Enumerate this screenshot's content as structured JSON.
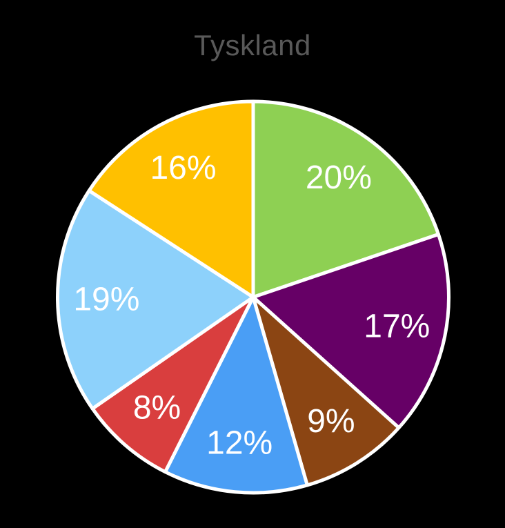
{
  "chart_data": {
    "type": "pie",
    "title": "Tyskland",
    "values": [
      20,
      17,
      9,
      12,
      8,
      19,
      16
    ],
    "labels": [
      "20%",
      "17%",
      "9%",
      "12%",
      "8%",
      "19%",
      "16%"
    ],
    "colors": [
      "#8ED053",
      "#660066",
      "#8B4513",
      "#4A9EF5",
      "#D93E3E",
      "#8DD1FB",
      "#FFC000"
    ],
    "start_angle_deg": 0,
    "direction": "clockwise",
    "legend": "none",
    "label_color": "#FFFFFF",
    "slice_border_color": "#FFFFFF",
    "title_color": "#595959",
    "background_color": "#000000"
  }
}
